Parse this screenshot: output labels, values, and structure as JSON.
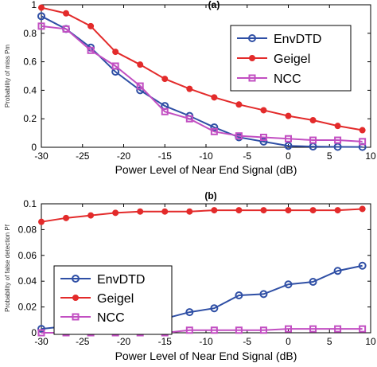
{
  "chart_data": [
    {
      "type": "line",
      "title": "(a)",
      "xlabel": "Power Level of Near End Signal (dB)",
      "ylabel": "Probability of miss Pm",
      "xlim": [
        -30,
        10
      ],
      "ylim": [
        0,
        1
      ],
      "xticks": [
        -30,
        -25,
        -20,
        -15,
        -10,
        -5,
        0,
        5,
        10
      ],
      "yticks": [
        0,
        0.2,
        0.4,
        0.6,
        0.8,
        1
      ],
      "x": [
        -30,
        -27,
        -24,
        -21,
        -18,
        -15,
        -12,
        -9,
        -6,
        -3,
        0,
        3,
        6,
        9
      ],
      "series": [
        {
          "name": "EnvDTD",
          "color": "#2f4fa5",
          "marker": "circle",
          "values": [
            0.92,
            0.83,
            0.7,
            0.53,
            0.4,
            0.29,
            0.22,
            0.14,
            0.07,
            0.04,
            0.01,
            0.005,
            0.003,
            0.002
          ]
        },
        {
          "name": "Geigel",
          "color": "#e32b2b",
          "marker": "dot",
          "values": [
            0.98,
            0.94,
            0.85,
            0.67,
            0.58,
            0.48,
            0.41,
            0.35,
            0.3,
            0.26,
            0.22,
            0.19,
            0.15,
            0.12
          ]
        },
        {
          "name": "NCC",
          "color": "#c24fc2",
          "marker": "square",
          "values": [
            0.85,
            0.83,
            0.68,
            0.57,
            0.43,
            0.25,
            0.2,
            0.11,
            0.08,
            0.07,
            0.06,
            0.05,
            0.05,
            0.04
          ]
        }
      ],
      "legend": {
        "position": "top-right",
        "entries": [
          "EnvDTD",
          "Geigel",
          "NCC"
        ]
      },
      "grid": false
    },
    {
      "type": "line",
      "title": "(b)",
      "xlabel": "Power Level of Near End Signal (dB)",
      "ylabel": "Probability of false detection Pf",
      "xlim": [
        -30,
        10
      ],
      "ylim": [
        0,
        0.1
      ],
      "xticks": [
        -30,
        -25,
        -20,
        -15,
        -10,
        -5,
        0,
        5,
        10
      ],
      "yticks": [
        0,
        0.02,
        0.04,
        0.06,
        0.08,
        0.1
      ],
      "x": [
        -30,
        -27,
        -24,
        -21,
        -18,
        -15,
        -12,
        -9,
        -6,
        -3,
        0,
        3,
        6,
        9
      ],
      "series": [
        {
          "name": "EnvDTD",
          "color": "#2f4fa5",
          "marker": "circle",
          "values": [
            0.003,
            0.005,
            0.0055,
            0.006,
            0.0085,
            0.011,
            0.016,
            0.019,
            0.029,
            0.03,
            0.0375,
            0.0395,
            0.048,
            0.052
          ]
        },
        {
          "name": "Geigel",
          "color": "#e32b2b",
          "marker": "dot",
          "values": [
            0.086,
            0.089,
            0.091,
            0.093,
            0.094,
            0.094,
            0.094,
            0.095,
            0.095,
            0.095,
            0.095,
            0.095,
            0.095,
            0.096
          ]
        },
        {
          "name": "NCC",
          "color": "#c24fc2",
          "marker": "square",
          "values": [
            0.0,
            0.0,
            0.0,
            0.0,
            0.0,
            0.0,
            0.002,
            0.002,
            0.002,
            0.002,
            0.003,
            0.003,
            0.003,
            0.003
          ]
        }
      ],
      "legend": {
        "position": "center-left",
        "entries": [
          "EnvDTD",
          "Geigel",
          "NCC"
        ]
      },
      "grid": false
    }
  ]
}
